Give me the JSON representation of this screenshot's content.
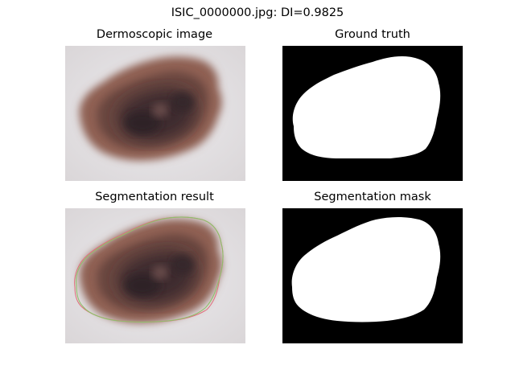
{
  "figure": {
    "title": "ISIC_0000000.jpg: DI=0.9825"
  },
  "panels": [
    {
      "title": "Dermoscopic image"
    },
    {
      "title": "Ground truth"
    },
    {
      "title": "Segmentation result"
    },
    {
      "title": "Segmentation mask"
    }
  ],
  "metrics": {
    "dice_index": 0.9825
  },
  "colors": {
    "skin_background": "#e7e4e6",
    "lesion_outer": "#8e5f52",
    "lesion_core": "#3d2d2e",
    "mask_background": "#000000",
    "mask_foreground": "#ffffff",
    "ground_truth_contour": "#e06c7a",
    "prediction_contour": "#8fbf6a"
  }
}
